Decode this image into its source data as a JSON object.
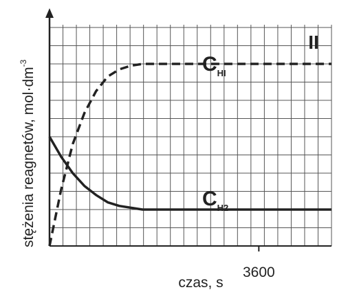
{
  "chart_data": {
    "type": "line",
    "panel_label": "II",
    "ylabel_main": "stężenia reagnetów, mol·dm",
    "ylabel_exp": "-3",
    "xlabel": "czas, s",
    "x_ticks": [
      {
        "value": 3600,
        "label": "3600"
      }
    ],
    "xlim": [
      0,
      4850
    ],
    "ylim": [
      0,
      12
    ],
    "grid": true,
    "series": [
      {
        "name_main": "C",
        "name_sub": "HI",
        "style": "dashed",
        "x": [
          0,
          200,
          400,
          600,
          800,
          1000,
          1200,
          1400,
          1600,
          1800,
          2000,
          2200,
          2400,
          4850
        ],
        "y": [
          0,
          3.1,
          5.6,
          7.3,
          8.5,
          9.3,
          9.7,
          9.9,
          10,
          10,
          10,
          10,
          10,
          10
        ]
      },
      {
        "name_main": "C",
        "name_sub": "H2",
        "style": "solid",
        "x": [
          0,
          200,
          400,
          600,
          800,
          1000,
          1200,
          1400,
          1600,
          1800,
          2000,
          2200,
          2400,
          4850
        ],
        "y": [
          6.0,
          4.9,
          4.0,
          3.3,
          2.8,
          2.4,
          2.2,
          2.1,
          2.0,
          2.0,
          2.0,
          2.0,
          2.0,
          2.0
        ]
      }
    ],
    "colors": {
      "line": "#222222",
      "grid": "#555555",
      "background": "#ffffff"
    }
  }
}
